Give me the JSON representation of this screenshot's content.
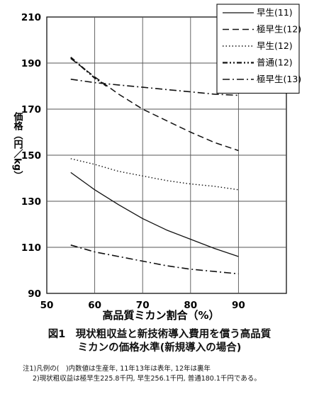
{
  "chart_data": {
    "type": "line",
    "xlabel": "高品質ミカン割合（%）",
    "ylabel": "価格（円／kg）",
    "xlim": [
      50,
      100
    ],
    "ylim": [
      90,
      210
    ],
    "xticks": [
      50,
      60,
      70,
      80,
      90
    ],
    "yticks": [
      90,
      110,
      130,
      150,
      170,
      190,
      210
    ],
    "grid": true,
    "legend_position": "top-right",
    "series": [
      {
        "name": "早生(11)",
        "style": "solid",
        "x": [
          55,
          60,
          65,
          70,
          75,
          80,
          85,
          90
        ],
        "y": [
          142.5,
          135,
          128.5,
          122.5,
          117.5,
          113.5,
          109.5,
          106
        ]
      },
      {
        "name": "極早生(12)",
        "style": "dashed",
        "x": [
          55,
          60,
          65,
          70,
          75,
          80,
          85,
          90
        ],
        "y": [
          192,
          184,
          176.5,
          170,
          165,
          160,
          155.5,
          152
        ]
      },
      {
        "name": "早生(12)",
        "style": "dotted",
        "x": [
          55,
          60,
          65,
          70,
          75,
          80,
          85,
          90
        ],
        "y": [
          148.5,
          146,
          143,
          141,
          139,
          137.5,
          136.5,
          135
        ]
      },
      {
        "name": "普通(12)",
        "style": "dash-dot-dot",
        "x": [
          55,
          57.5,
          60,
          62.5
        ],
        "y": [
          192.5,
          188,
          183.5,
          180
        ]
      },
      {
        "name": "極早生(13)",
        "style": "dash-dot",
        "x": [
          55,
          60,
          65,
          70,
          75,
          80,
          85,
          90
        ],
        "y": [
          183,
          181.5,
          180.5,
          179.5,
          178.5,
          177.5,
          176.5,
          176
        ]
      },
      {
        "name": "",
        "style": "dash-dot",
        "x": [
          55,
          60,
          65,
          70,
          75,
          80,
          85,
          90
        ],
        "y": [
          111,
          108,
          106,
          104,
          102,
          100.5,
          99.5,
          98.5
        ]
      }
    ]
  },
  "caption": {
    "line1": "図1　現状粗収益と新技術導入費用を償う高品質",
    "line2": "ミカンの価格水準(新規導入の場合)"
  },
  "notes": {
    "note1": "注1)凡例の(　)内数値は生産年, 11年13年は表年, 12年は裏年",
    "note2": "2)現状粗収益は極早生225.8千円, 早生256.1千円, 普通180.1千円である。"
  },
  "colors": {
    "line": "#111111",
    "grid": "#555555",
    "background": "#ffffff"
  }
}
